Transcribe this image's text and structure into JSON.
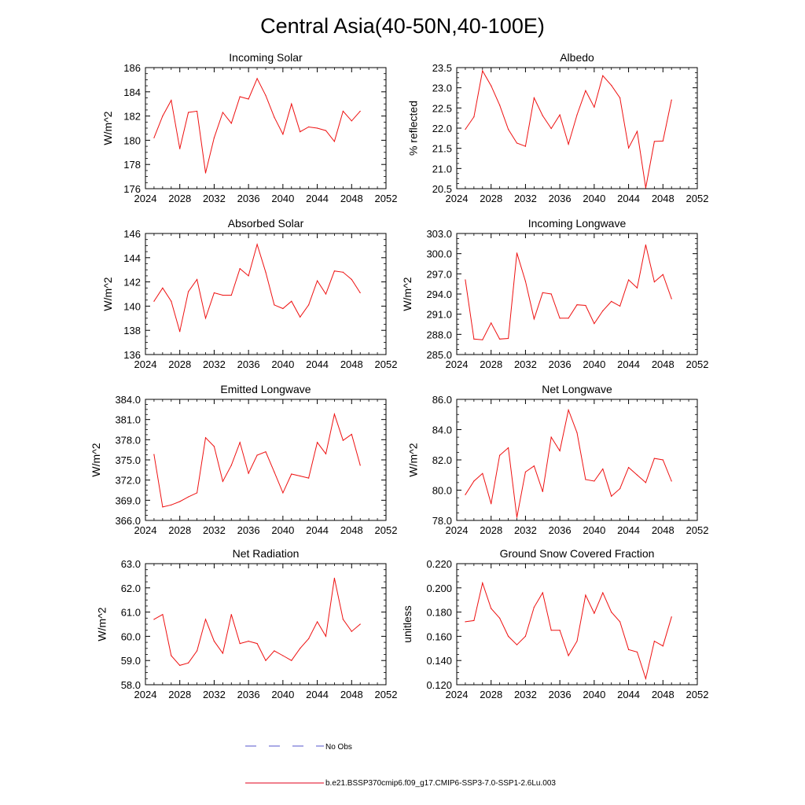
{
  "figure": {
    "title": "Central Asia(40-50N,40-100E)",
    "legend": [
      {
        "label": "No Obs",
        "color": "#5555cc",
        "style": "dashed"
      },
      {
        "label": "b.e21.BSSP370cmip6.f09_g17.CMIP6-SSP3-7.0-SSP1-2.6Lu.003",
        "color": "#e0001b",
        "style": "solid"
      }
    ],
    "series_color": "#ee1111"
  },
  "chart_data": [
    {
      "type": "line",
      "title": "Incoming Solar",
      "xlabel": "",
      "ylabel": "W/m^2",
      "xlim": [
        2024,
        2052
      ],
      "ylim": [
        176,
        186
      ],
      "xticks": [
        2024,
        2028,
        2032,
        2036,
        2040,
        2044,
        2048,
        2052
      ],
      "yticks": [
        176,
        178,
        180,
        182,
        184,
        186
      ],
      "ytick_labels": [
        "176",
        "178",
        "180",
        "182",
        "184",
        "186"
      ],
      "x": [
        2025,
        2026,
        2027,
        2028,
        2029,
        2030,
        2031,
        2032,
        2033,
        2034,
        2035,
        2036,
        2037,
        2038,
        2039,
        2040,
        2041,
        2042,
        2043,
        2044,
        2045,
        2046,
        2047,
        2048,
        2049
      ],
      "series": [
        {
          "name": "b.e21.BSSP370cmip6.f09_g17.CMIP6-SSP3-7.0-SSP1-2.6Lu.003",
          "values": [
            180.2,
            182.0,
            183.3,
            179.3,
            182.3,
            182.4,
            177.3,
            180.2,
            182.3,
            181.4,
            183.6,
            183.4,
            185.1,
            183.7,
            181.9,
            180.5,
            183.0,
            180.7,
            181.1,
            181.0,
            180.8,
            179.9,
            182.4,
            181.6,
            182.4
          ]
        }
      ]
    },
    {
      "type": "line",
      "title": "Albedo",
      "xlabel": "",
      "ylabel": "% reflected",
      "xlim": [
        2024,
        2052
      ],
      "ylim": [
        20.5,
        23.5
      ],
      "xticks": [
        2024,
        2028,
        2032,
        2036,
        2040,
        2044,
        2048,
        2052
      ],
      "yticks": [
        20.5,
        21.0,
        21.5,
        22.0,
        22.5,
        23.0,
        23.5
      ],
      "ytick_labels": [
        "20.5",
        "21.0",
        "21.5",
        "22.0",
        "22.5",
        "23.0",
        "23.5"
      ],
      "x": [
        2025,
        2026,
        2027,
        2028,
        2029,
        2030,
        2031,
        2032,
        2033,
        2034,
        2035,
        2036,
        2037,
        2038,
        2039,
        2040,
        2041,
        2042,
        2043,
        2044,
        2045,
        2046,
        2047,
        2048,
        2049
      ],
      "series": [
        {
          "name": "b.e21.BSSP370cmip6.f09_g17.CMIP6-SSP3-7.0-SSP1-2.6Lu.003",
          "values": [
            21.97,
            22.28,
            23.42,
            23.05,
            22.57,
            21.97,
            21.63,
            21.55,
            22.75,
            22.31,
            21.99,
            22.33,
            21.6,
            22.33,
            22.93,
            22.52,
            23.3,
            23.06,
            22.75,
            21.51,
            21.92,
            20.52,
            21.67,
            21.68,
            22.7
          ]
        }
      ]
    },
    {
      "type": "line",
      "title": "Absorbed Solar",
      "xlabel": "",
      "ylabel": "W/m^2",
      "xlim": [
        2024,
        2052
      ],
      "ylim": [
        136,
        146
      ],
      "xticks": [
        2024,
        2028,
        2032,
        2036,
        2040,
        2044,
        2048,
        2052
      ],
      "yticks": [
        136,
        138,
        140,
        142,
        144,
        146
      ],
      "ytick_labels": [
        "136",
        "138",
        "140",
        "142",
        "144",
        "146"
      ],
      "x": [
        2025,
        2026,
        2027,
        2028,
        2029,
        2030,
        2031,
        2032,
        2033,
        2034,
        2035,
        2036,
        2037,
        2038,
        2039,
        2040,
        2041,
        2042,
        2043,
        2044,
        2045,
        2046,
        2047,
        2048,
        2049
      ],
      "series": [
        {
          "name": "b.e21.BSSP370cmip6.f09_g17.CMIP6-SSP3-7.0-SSP1-2.6Lu.003",
          "values": [
            140.4,
            141.5,
            140.4,
            137.9,
            141.2,
            142.2,
            139.0,
            141.1,
            140.9,
            140.9,
            143.1,
            142.5,
            145.1,
            142.8,
            140.1,
            139.8,
            140.4,
            139.1,
            140.1,
            142.1,
            141.0,
            142.9,
            142.8,
            142.2,
            141.1
          ]
        }
      ]
    },
    {
      "type": "line",
      "title": "Incoming Longwave",
      "xlabel": "",
      "ylabel": "W/m^2",
      "xlim": [
        2024,
        2052
      ],
      "ylim": [
        285,
        303
      ],
      "xticks": [
        2024,
        2028,
        2032,
        2036,
        2040,
        2044,
        2048,
        2052
      ],
      "yticks": [
        285,
        288,
        291,
        294,
        297,
        300,
        303
      ],
      "ytick_labels": [
        "285.0",
        "288.0",
        "291.0",
        "294.0",
        "297.0",
        "300.0",
        "303.0"
      ],
      "x": [
        2025,
        2026,
        2027,
        2028,
        2029,
        2030,
        2031,
        2032,
        2033,
        2034,
        2035,
        2036,
        2037,
        2038,
        2039,
        2040,
        2041,
        2042,
        2043,
        2044,
        2045,
        2046,
        2047,
        2048,
        2049
      ],
      "series": [
        {
          "name": "b.e21.BSSP370cmip6.f09_g17.CMIP6-SSP3-7.0-SSP1-2.6Lu.003",
          "values": [
            296.1,
            287.3,
            287.2,
            289.7,
            287.3,
            287.4,
            300.1,
            295.9,
            290.3,
            294.2,
            294.0,
            290.4,
            290.4,
            292.4,
            292.3,
            289.6,
            291.5,
            292.9,
            292.2,
            296.1,
            294.9,
            301.3,
            295.8,
            296.9,
            293.3
          ]
        }
      ]
    },
    {
      "type": "line",
      "title": "Emitted Longwave",
      "xlabel": "",
      "ylabel": "W/m^2",
      "xlim": [
        2024,
        2052
      ],
      "ylim": [
        366,
        384
      ],
      "xticks": [
        2024,
        2028,
        2032,
        2036,
        2040,
        2044,
        2048,
        2052
      ],
      "yticks": [
        366,
        369,
        372,
        375,
        378,
        381,
        384
      ],
      "ytick_labels": [
        "366.0",
        "369.0",
        "372.0",
        "375.0",
        "378.0",
        "381.0",
        "384.0"
      ],
      "x": [
        2025,
        2026,
        2027,
        2028,
        2029,
        2030,
        2031,
        2032,
        2033,
        2034,
        2035,
        2036,
        2037,
        2038,
        2039,
        2040,
        2041,
        2042,
        2043,
        2044,
        2045,
        2046,
        2047,
        2048,
        2049
      ],
      "series": [
        {
          "name": "b.e21.BSSP370cmip6.f09_g17.CMIP6-SSP3-7.0-SSP1-2.6Lu.003",
          "values": [
            375.8,
            368.0,
            368.3,
            368.8,
            369.5,
            370.1,
            378.3,
            377.0,
            371.8,
            374.2,
            377.6,
            373.0,
            375.7,
            376.2,
            373.2,
            370.1,
            372.9,
            372.6,
            372.3,
            377.6,
            375.9,
            381.8,
            377.9,
            378.8,
            374.2
          ]
        }
      ]
    },
    {
      "type": "line",
      "title": "Net Longwave",
      "xlabel": "",
      "ylabel": "W/m^2",
      "xlim": [
        2024,
        2052
      ],
      "ylim": [
        78,
        86
      ],
      "xticks": [
        2024,
        2028,
        2032,
        2036,
        2040,
        2044,
        2048,
        2052
      ],
      "yticks": [
        78,
        80,
        82,
        84,
        86
      ],
      "ytick_labels": [
        "78.0",
        "80.0",
        "82.0",
        "84.0",
        "86.0"
      ],
      "x": [
        2025,
        2026,
        2027,
        2028,
        2029,
        2030,
        2031,
        2032,
        2033,
        2034,
        2035,
        2036,
        2037,
        2038,
        2039,
        2040,
        2041,
        2042,
        2043,
        2044,
        2045,
        2046,
        2047,
        2048,
        2049
      ],
      "series": [
        {
          "name": "b.e21.BSSP370cmip6.f09_g17.CMIP6-SSP3-7.0-SSP1-2.6Lu.003",
          "values": [
            79.7,
            80.6,
            81.1,
            79.1,
            82.3,
            82.8,
            78.2,
            81.2,
            81.6,
            79.9,
            83.5,
            82.6,
            85.3,
            83.8,
            80.7,
            80.6,
            81.4,
            79.6,
            80.1,
            81.5,
            81.0,
            80.5,
            82.1,
            82.0,
            80.6
          ]
        }
      ]
    },
    {
      "type": "line",
      "title": "Net Radiation",
      "xlabel": "",
      "ylabel": "W/m^2",
      "xlim": [
        2024,
        2052
      ],
      "ylim": [
        58,
        63
      ],
      "xticks": [
        2024,
        2028,
        2032,
        2036,
        2040,
        2044,
        2048,
        2052
      ],
      "yticks": [
        58,
        59,
        60,
        61,
        62,
        63
      ],
      "ytick_labels": [
        "58.0",
        "59.0",
        "60.0",
        "61.0",
        "62.0",
        "63.0"
      ],
      "x": [
        2025,
        2026,
        2027,
        2028,
        2029,
        2030,
        2031,
        2032,
        2033,
        2034,
        2035,
        2036,
        2037,
        2038,
        2039,
        2040,
        2041,
        2042,
        2043,
        2044,
        2045,
        2046,
        2047,
        2048,
        2049
      ],
      "series": [
        {
          "name": "b.e21.BSSP370cmip6.f09_g17.CMIP6-SSP3-7.0-SSP1-2.6Lu.003",
          "values": [
            60.7,
            60.9,
            59.2,
            58.8,
            58.9,
            59.4,
            60.7,
            59.8,
            59.3,
            60.9,
            59.7,
            59.8,
            59.7,
            59.0,
            59.4,
            59.2,
            59.0,
            59.5,
            59.9,
            60.6,
            60.0,
            62.4,
            60.7,
            60.2,
            60.5
          ]
        }
      ]
    },
    {
      "type": "line",
      "title": "Ground Snow Covered Fraction",
      "xlabel": "",
      "ylabel": "unitless",
      "xlim": [
        2024,
        2052
      ],
      "ylim": [
        0.12,
        0.22
      ],
      "xticks": [
        2024,
        2028,
        2032,
        2036,
        2040,
        2044,
        2048,
        2052
      ],
      "yticks": [
        0.12,
        0.14,
        0.16,
        0.18,
        0.2,
        0.22
      ],
      "ytick_labels": [
        "0.120",
        "0.140",
        "0.160",
        "0.180",
        "0.200",
        "0.220"
      ],
      "x": [
        2025,
        2026,
        2027,
        2028,
        2029,
        2030,
        2031,
        2032,
        2033,
        2034,
        2035,
        2036,
        2037,
        2038,
        2039,
        2040,
        2041,
        2042,
        2043,
        2044,
        2045,
        2046,
        2047,
        2048,
        2049
      ],
      "series": [
        {
          "name": "b.e21.BSSP370cmip6.f09_g17.CMIP6-SSP3-7.0-SSP1-2.6Lu.003",
          "values": [
            0.172,
            0.173,
            0.204,
            0.183,
            0.175,
            0.16,
            0.153,
            0.16,
            0.184,
            0.196,
            0.165,
            0.165,
            0.144,
            0.156,
            0.194,
            0.179,
            0.196,
            0.18,
            0.172,
            0.149,
            0.147,
            0.125,
            0.156,
            0.152,
            0.176
          ]
        }
      ]
    }
  ]
}
